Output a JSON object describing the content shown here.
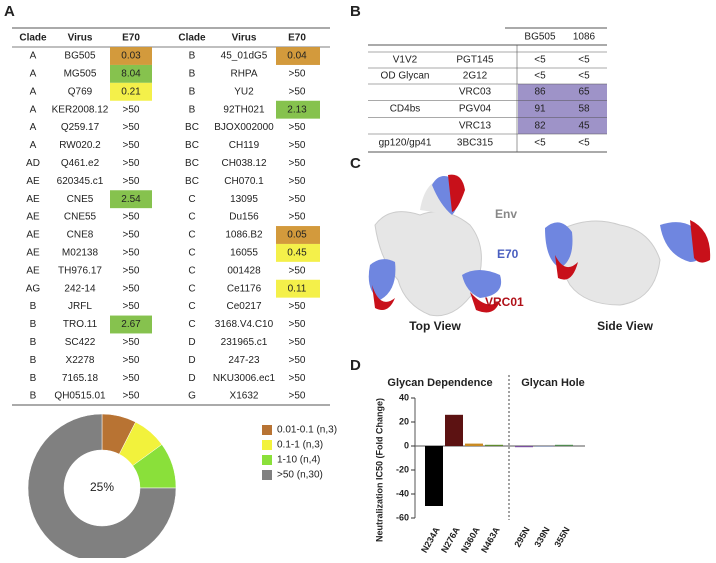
{
  "panel_labels": [
    "A",
    "B",
    "C",
    "D"
  ],
  "panel_a": {
    "table": {
      "header": [
        "Clade",
        "Virus",
        "E70",
        "Clade",
        "Virus",
        "E70"
      ],
      "rows": [
        [
          "A",
          "BG505",
          "0.03",
          "B",
          "45_01dG5",
          "0.04"
        ],
        [
          "A",
          "MG505",
          "8.04",
          "B",
          "RHPA",
          ">50"
        ],
        [
          "A",
          "Q769",
          "0.21",
          "B",
          "YU2",
          ">50"
        ],
        [
          "A",
          "KER2008.12",
          ">50",
          "B",
          "92TH021",
          "2.13"
        ],
        [
          "A",
          "Q259.17",
          ">50",
          "BC",
          "BJOX002000",
          ">50"
        ],
        [
          "A",
          "RW020.2",
          ">50",
          "BC",
          "CH119",
          ">50"
        ],
        [
          "AD",
          "Q461.e2",
          ">50",
          "BC",
          "CH038.12",
          ">50"
        ],
        [
          "AE",
          "620345.c1",
          ">50",
          "BC",
          "CH070.1",
          ">50"
        ],
        [
          "AE",
          "CNE5",
          "2.54",
          "C",
          "13095",
          ">50"
        ],
        [
          "AE",
          "CNE55",
          ">50",
          "C",
          "Du156",
          ">50"
        ],
        [
          "AE",
          "CNE8",
          ">50",
          "C",
          "1086.B2",
          "0.05"
        ],
        [
          "AE",
          "M02138",
          ">50",
          "C",
          "16055",
          "0.45"
        ],
        [
          "AE",
          "TH976.17",
          ">50",
          "C",
          "001428",
          ">50"
        ],
        [
          "AG",
          "242-14",
          ">50",
          "C",
          "Ce1176",
          "0.11"
        ],
        [
          "B",
          "JRFL",
          ">50",
          "C",
          "Ce0217",
          ">50"
        ],
        [
          "B",
          "TRO.11",
          "2.67",
          "C",
          "3168.V4.C10",
          ">50"
        ],
        [
          "B",
          "SC422",
          ">50",
          "D",
          "231965.c1",
          ">50"
        ],
        [
          "B",
          "X2278",
          ">50",
          "D",
          "247-23",
          ">50"
        ],
        [
          "B",
          "7165.18",
          ">50",
          "D",
          "NKU3006.ec1",
          ">50"
        ],
        [
          "B",
          "QH0515.01",
          ">50",
          "G",
          "X1632",
          ">50"
        ]
      ],
      "shade": [
        [
          0,
          0
        ],
        [
          2,
          null
        ],
        [
          1,
          null
        ],
        [
          null,
          2
        ],
        [
          null,
          null
        ],
        [
          null,
          null
        ],
        [
          null,
          null
        ],
        [
          null,
          null
        ],
        [
          2,
          null
        ],
        [
          null,
          null
        ],
        [
          null,
          0
        ],
        [
          null,
          1
        ],
        [
          null,
          null
        ],
        [
          null,
          1
        ],
        [
          null,
          null
        ],
        [
          2,
          null
        ],
        [
          null,
          null
        ],
        [
          null,
          null
        ],
        [
          null,
          null
        ],
        [
          null,
          null
        ]
      ],
      "shade_colors": [
        "#d39a3c",
        "#f4f04a",
        "#86c24e"
      ]
    }
  },
  "panel_b": {
    "header": [
      "BG505",
      "1086"
    ],
    "rows": [
      [
        "V1V2",
        "PGT145",
        "<5",
        "<5"
      ],
      [
        "OD Glycan",
        "2G12",
        "<5",
        "<5"
      ],
      [
        "CD4bs",
        "VRC03",
        "86",
        "65"
      ],
      [
        "",
        "PGV04",
        "91",
        "58"
      ],
      [
        "",
        "VRC13",
        "82",
        "45"
      ],
      [
        "gp120/gp41",
        "3BC315",
        "<5",
        "<5"
      ]
    ],
    "highlight_color": "#9e93c8"
  },
  "panel_c": {
    "labels": [
      "Env",
      "E70",
      "VRC01",
      "Top View",
      "Side View"
    ]
  },
  "chart_data": [
    {
      "type": "pie",
      "center_label": "25%",
      "categories": [
        "0.01-0.1 (n,3)",
        "0.1-1 (n,3)",
        "1-10 (n,4)",
        ">50 (n,30)"
      ],
      "values": [
        3,
        3,
        4,
        30
      ],
      "colors": [
        "#b87333",
        "#f2f23c",
        "#8ae03a",
        "#808080"
      ]
    },
    {
      "type": "bar",
      "title": "",
      "section_labels": [
        "Glycan Dependence",
        "Glycan Hole"
      ],
      "ylabel": "Neutralization IC50 (Fold Change)",
      "categories": [
        "N234A",
        "N276A",
        "N360A",
        "N463A",
        "295N",
        "339N",
        "355N"
      ],
      "values": [
        -50,
        26,
        2,
        1,
        -1,
        -0.5,
        1
      ],
      "colors": [
        "#000000",
        "#5c1212",
        "#c98a22",
        "#5e8a2c",
        "#7a4fa0",
        "#5d6f9a",
        "#4f8a4f"
      ],
      "ylim": [
        -60,
        40
      ],
      "yticks": [
        -60,
        -40,
        -20,
        0,
        20,
        40
      ]
    }
  ]
}
